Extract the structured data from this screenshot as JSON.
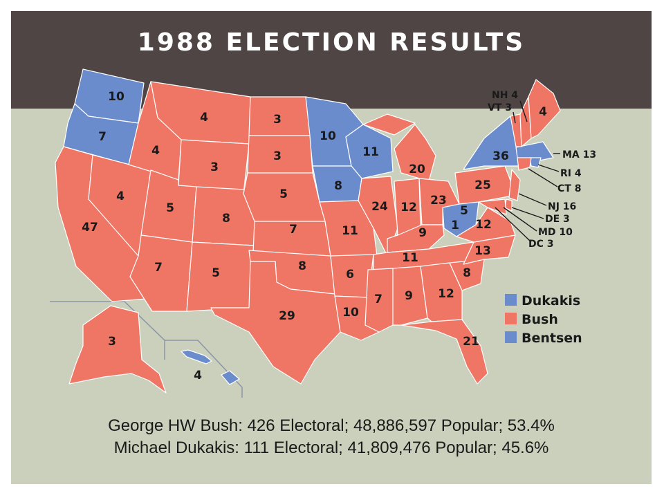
{
  "title": "1988 ELECTION RESULTS",
  "colors": {
    "dukakis": "#6a8ccc",
    "bush": "#ef7564",
    "bentsen": "#6a8ccc",
    "title_bg": "#4f4544",
    "slide_bg": "#cbd0bc"
  },
  "legend": [
    {
      "label": "Dukakis",
      "color": "#6a8ccc"
    },
    {
      "label": "Bush",
      "color": "#ef7564"
    },
    {
      "label": "Bentsen",
      "color": "#6a8ccc"
    }
  ],
  "states": {
    "wa": "10",
    "or": "7",
    "ca": "47",
    "nv": "4",
    "id": "4",
    "mt": "4",
    "wy": "3",
    "ut": "5",
    "co": "8",
    "az": "7",
    "nm": "5",
    "nd": "3",
    "sd": "3",
    "ne": "5",
    "ks": "7",
    "ok": "8",
    "tx": "29",
    "mn": "10",
    "ia": "8",
    "mo": "11",
    "ar": "6",
    "la": "10",
    "wi": "11",
    "il": "24",
    "mi": "20",
    "in": "12",
    "oh": "23",
    "ky": "9",
    "tn": "11",
    "ms": "7",
    "al": "9",
    "ga": "12",
    "fl": "21",
    "sc": "8",
    "nc": "13",
    "va": "12",
    "wv": "5",
    "wv_bentsen": "1",
    "pa": "25",
    "ny": "36",
    "me": "4",
    "ak": "3",
    "hi": "4"
  },
  "callouts": {
    "nh": "NH 4",
    "vt": "VT 3",
    "ma": "MA 13",
    "ri": "RI 4",
    "ct": "CT 8",
    "nj": "NJ 16",
    "de": "DE 3",
    "md": "MD 10",
    "dc": "DC 3"
  },
  "results": [
    "George HW Bush: 426 Electoral; 48,886,597 Popular; 53.4%",
    "Michael Dukakis: 111 Electoral; 41,809,476 Popular; 45.6%"
  ]
}
